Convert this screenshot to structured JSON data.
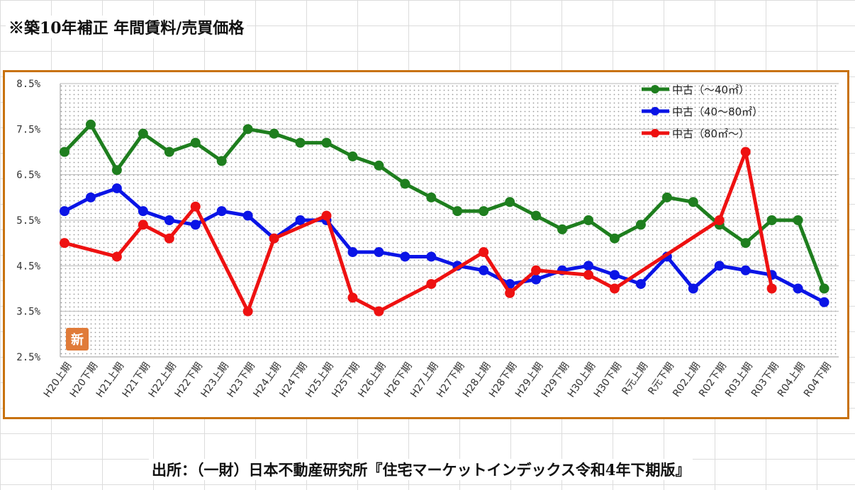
{
  "header": {
    "title": "※築10年補正 年間賃料/売買価格"
  },
  "footer": {
    "source": "出所：（一財）日本不動産研究所『住宅マーケットインデックス令和4年下期版』"
  },
  "badge": {
    "text": "新",
    "color": "#e07b39"
  },
  "chart_data": {
    "type": "line",
    "title": "",
    "xlabel": "",
    "ylabel": "",
    "ylim": [
      2.5,
      8.5
    ],
    "yticks": [
      "8.5%",
      "7.5%",
      "6.5%",
      "5.5%",
      "4.5%",
      "3.5%",
      "2.5%"
    ],
    "ytick_values": [
      8.5,
      7.5,
      6.5,
      5.5,
      4.5,
      3.5,
      2.5
    ],
    "grid": "dotted",
    "legend_position": "top-right",
    "categories": [
      "H20上期",
      "H20下期",
      "H21上期",
      "H21下期",
      "H22上期",
      "H22下期",
      "H23上期",
      "H23下期",
      "H24上期",
      "H24下期",
      "H25上期",
      "H25下期",
      "H26上期",
      "H26下期",
      "H27上期",
      "H27下期",
      "H28上期",
      "H28下期",
      "H29上期",
      "H29下期",
      "H30上期",
      "H30下期",
      "R元上期",
      "R元下期",
      "R02上期",
      "R02下期",
      "R03上期",
      "R03下期",
      "R04上期",
      "R04下期"
    ],
    "series": [
      {
        "name": "中古（～40㎡）",
        "color": "#1e7e1e",
        "values": [
          7.0,
          7.6,
          6.6,
          7.4,
          7.0,
          7.2,
          6.8,
          7.5,
          7.4,
          7.2,
          7.2,
          6.9,
          6.7,
          6.3,
          6.0,
          5.7,
          5.7,
          5.9,
          5.6,
          5.3,
          5.5,
          5.1,
          5.4,
          6.0,
          5.9,
          5.4,
          5.0,
          5.5,
          5.5,
          4.0
        ]
      },
      {
        "name": "中古（40～80㎡）",
        "color": "#0a14e6",
        "values": [
          5.7,
          6.0,
          6.2,
          5.7,
          5.5,
          5.4,
          5.7,
          5.6,
          5.1,
          5.5,
          5.5,
          4.8,
          4.8,
          4.7,
          4.7,
          4.5,
          4.4,
          4.1,
          4.2,
          4.4,
          4.5,
          4.3,
          4.1,
          4.7,
          4.0,
          4.5,
          4.4,
          4.3,
          4.0,
          3.7
        ]
      },
      {
        "name": "中古（80㎡～）",
        "color": "#ee1111",
        "values": [
          5.0,
          null,
          4.7,
          5.4,
          5.1,
          5.8,
          null,
          3.5,
          5.1,
          null,
          5.6,
          3.8,
          3.5,
          null,
          4.1,
          null,
          4.8,
          3.9,
          4.4,
          null,
          4.3,
          4.0,
          null,
          null,
          null,
          5.5,
          7.0,
          4.0,
          null,
          null
        ]
      }
    ]
  }
}
